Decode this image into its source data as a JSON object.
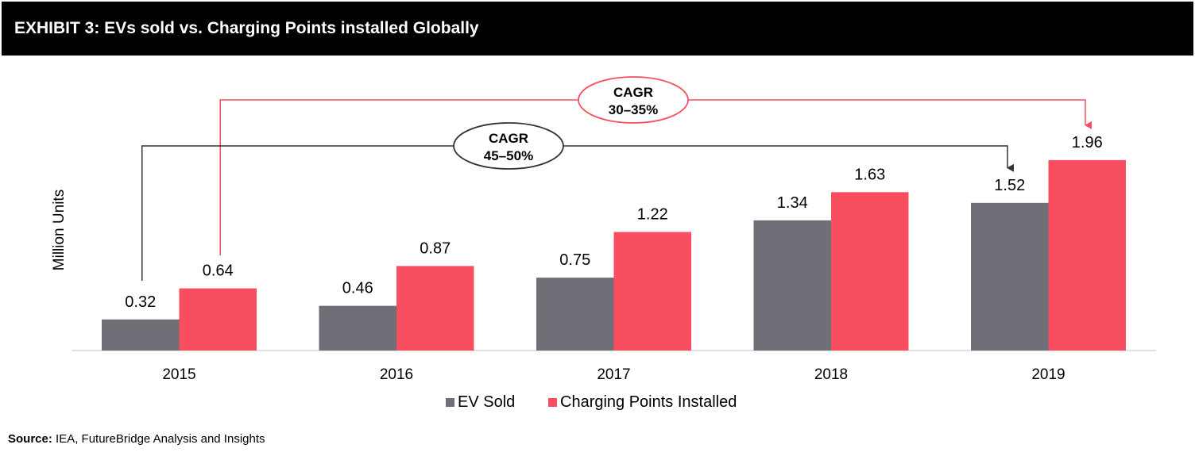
{
  "header": {
    "title": "EXHIBIT 3: EVs sold vs. Charging Points installed Globally"
  },
  "source": {
    "label": "Source:",
    "text": "IEA, FutureBridge Analysis and Insights"
  },
  "colors": {
    "ev": "#6f6f78",
    "charging": "#f84e60",
    "header_bg": "#000000"
  },
  "chart_data": {
    "type": "bar",
    "title": "EVs sold vs. Charging Points installed Globally",
    "ylabel": "Million Units",
    "xlabel": "",
    "categories": [
      "2015",
      "2016",
      "2017",
      "2018",
      "2019"
    ],
    "series": [
      {
        "name": "EV Sold",
        "color": "#6f6f78",
        "values": [
          0.32,
          0.46,
          0.75,
          1.34,
          1.52
        ]
      },
      {
        "name": "Charging Points Installed",
        "color": "#f84e60",
        "values": [
          0.64,
          0.87,
          1.22,
          1.63,
          1.96
        ]
      }
    ],
    "ylim": [
      0,
      2.2
    ],
    "grid": false,
    "legend": "bottom",
    "annotations": [
      {
        "series": "Charging Points Installed",
        "from": "2015",
        "to": "2019",
        "line1": "CAGR",
        "line2": "30–35%",
        "color": "#f84e60"
      },
      {
        "series": "EV Sold",
        "from": "2015",
        "to": "2019",
        "line1": "CAGR",
        "line2": "45–50%",
        "color": "#333333"
      }
    ]
  }
}
